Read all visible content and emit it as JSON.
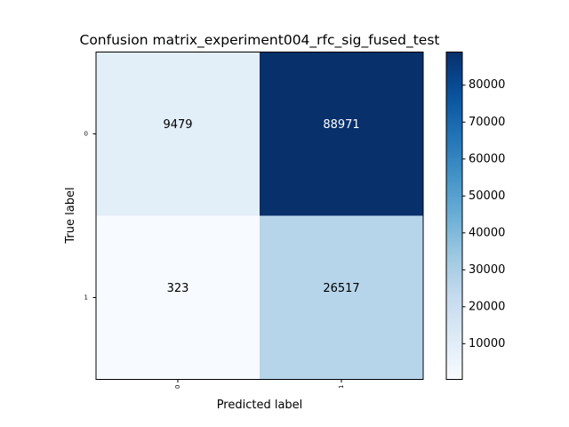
{
  "chart_data": {
    "type": "heatmap",
    "title": "Confusion matrix_experiment004_rfc_sig_fused_test",
    "xlabel": "Predicted label",
    "ylabel": "True label",
    "x_tick_labels": [
      "0",
      "1"
    ],
    "y_tick_labels": [
      "0",
      "1"
    ],
    "matrix": [
      [
        9479,
        88971
      ],
      [
        323,
        26517
      ]
    ],
    "cell_labels": [
      [
        "9479",
        "88971"
      ],
      [
        "323",
        "26517"
      ]
    ],
    "colormap": "Blues",
    "color_range": [
      323,
      88971
    ],
    "colorbar_ticks": [
      10000,
      20000,
      30000,
      40000,
      50000,
      60000,
      70000,
      80000
    ],
    "colorbar_tick_labels": [
      "10000",
      "20000",
      "30000",
      "40000",
      "50000",
      "60000",
      "70000",
      "80000"
    ]
  }
}
